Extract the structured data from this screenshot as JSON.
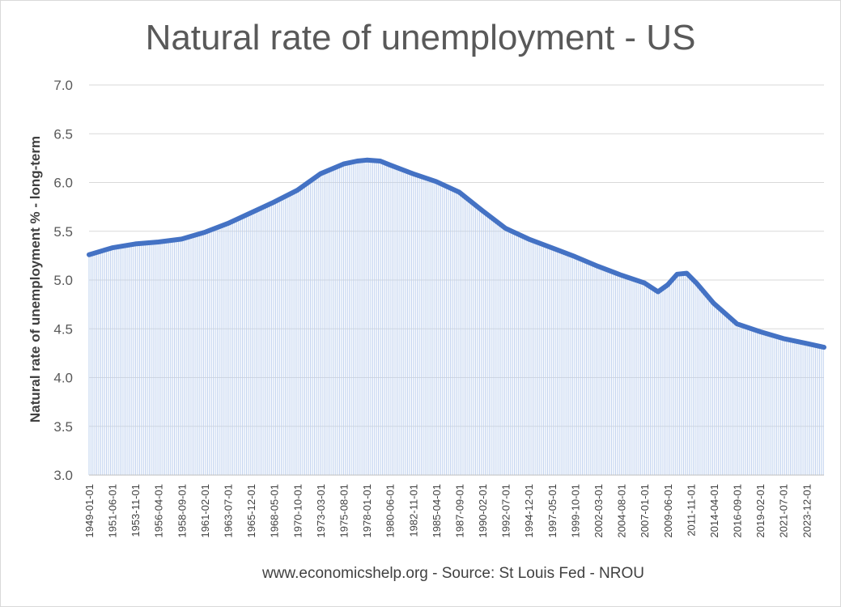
{
  "chart_data": {
    "type": "area",
    "title": "Natural rate of unemployment - US",
    "xlabel": "www.economicshelp.org - Source: St Louis Fed - NROU",
    "ylabel": "Natural rate of unemployment % - long-term",
    "ylim": [
      3.0,
      7.0
    ],
    "yticks": [
      "3.0",
      "3.5",
      "4.0",
      "4.5",
      "5.0",
      "5.5",
      "6.0",
      "6.5",
      "7.0"
    ],
    "xlim": [
      "1949-01-01",
      "2025-10-01"
    ],
    "xticks": [
      "1949-01-01",
      "1951-06-01",
      "1953-11-01",
      "1956-04-01",
      "1958-09-01",
      "1961-02-01",
      "1963-07-01",
      "1965-12-01",
      "1968-05-01",
      "1970-10-01",
      "1973-03-01",
      "1975-08-01",
      "1978-01-01",
      "1980-06-01",
      "1982-11-01",
      "1985-04-01",
      "1987-09-01",
      "1990-02-01",
      "1992-07-01",
      "1994-12-01",
      "1997-05-01",
      "1999-10-01",
      "2002-03-01",
      "2004-08-01",
      "2007-01-01",
      "2009-06-01",
      "2011-11-01",
      "2014-04-01",
      "2016-09-01",
      "2019-02-01",
      "2021-07-01",
      "2023-12-01"
    ],
    "grid": true,
    "series": [
      {
        "color": "#4472c4",
        "x": [
          "1949-01-01",
          "1951-06-01",
          "1953-11-01",
          "1956-04-01",
          "1958-09-01",
          "1961-02-01",
          "1963-07-01",
          "1965-12-01",
          "1968-05-01",
          "1970-10-01",
          "1973-03-01",
          "1975-08-01",
          "1977-01-01",
          "1978-01-01",
          "1979-06-01",
          "1980-06-01",
          "1982-11-01",
          "1985-04-01",
          "1987-09-01",
          "1990-02-01",
          "1992-07-01",
          "1994-12-01",
          "1997-05-01",
          "1999-10-01",
          "2002-03-01",
          "2004-08-01",
          "2007-01-01",
          "2008-06-01",
          "2009-06-01",
          "2010-06-01",
          "2011-06-01",
          "2012-06-01",
          "2014-04-01",
          "2016-09-01",
          "2019-02-01",
          "2021-07-01",
          "2023-12-01",
          "2025-10-01"
        ],
        "values": [
          5.26,
          5.33,
          5.37,
          5.39,
          5.42,
          5.49,
          5.58,
          5.69,
          5.8,
          5.92,
          6.09,
          6.19,
          6.22,
          6.23,
          6.22,
          6.18,
          6.09,
          6.01,
          5.9,
          5.71,
          5.53,
          5.42,
          5.33,
          5.24,
          5.14,
          5.05,
          4.97,
          4.88,
          4.95,
          5.06,
          5.07,
          4.97,
          4.76,
          4.55,
          4.47,
          4.4,
          4.35,
          4.31
        ]
      }
    ]
  }
}
